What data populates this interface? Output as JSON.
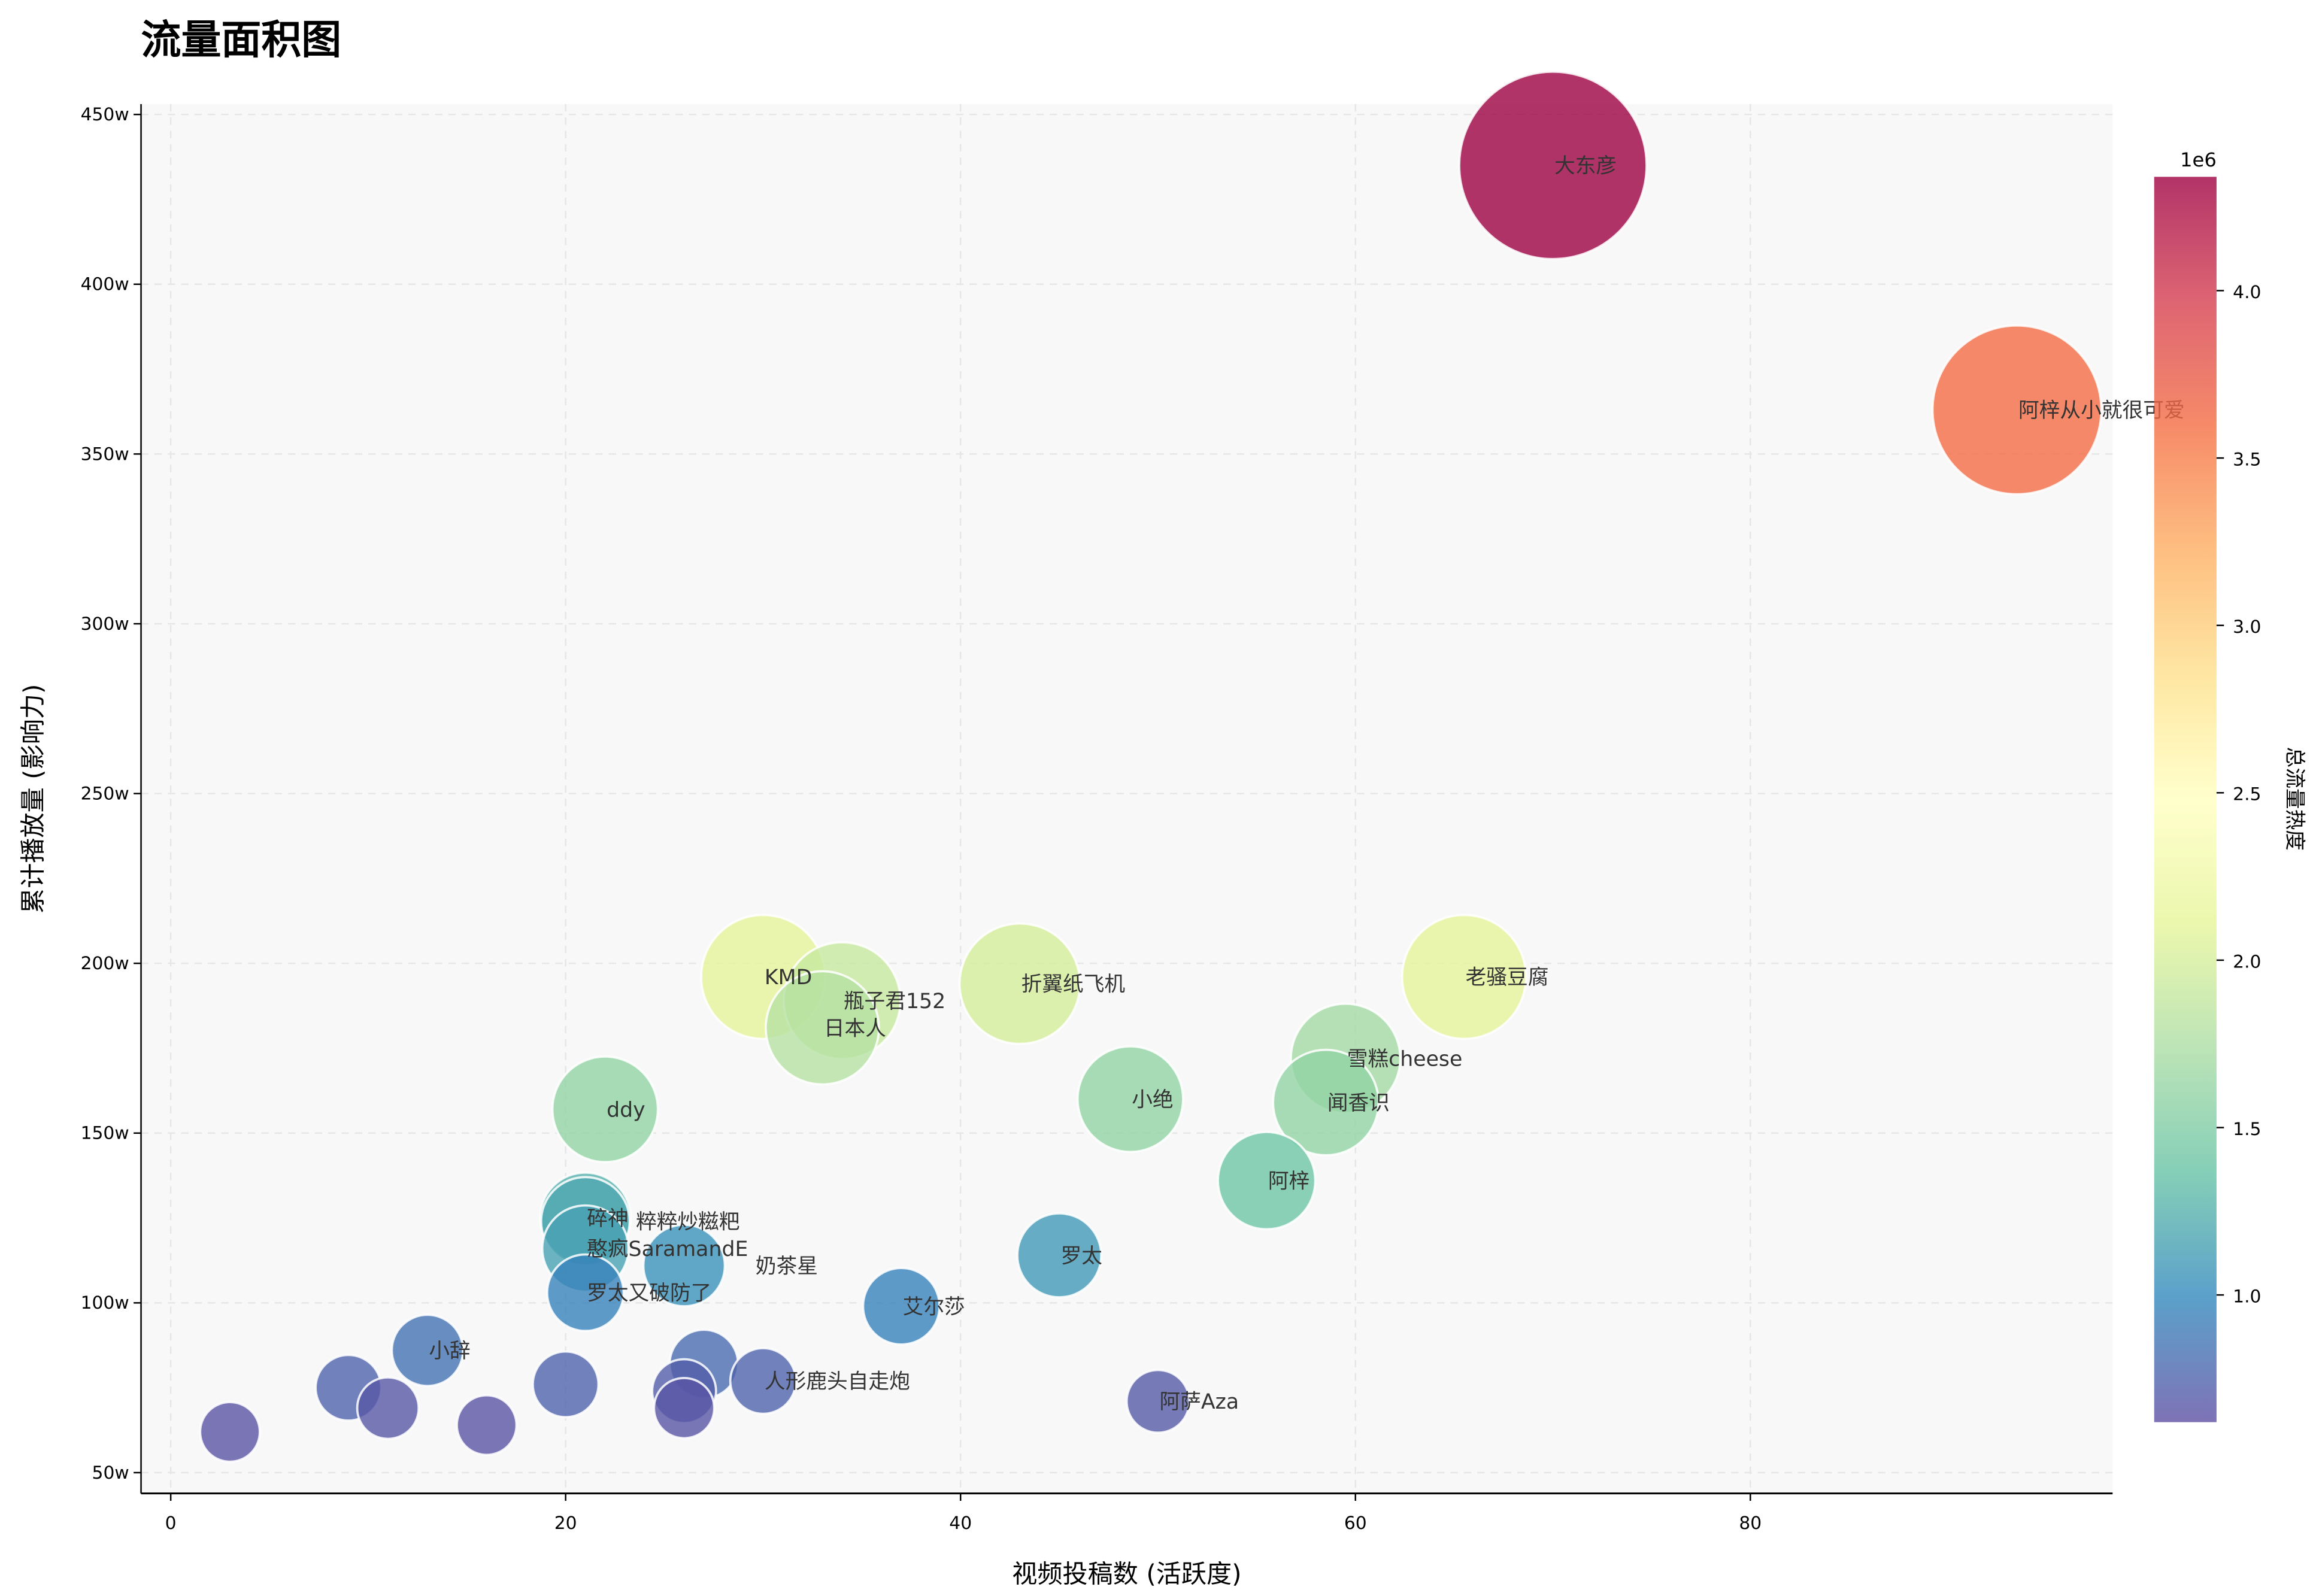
{
  "chart_data": {
    "type": "scatter",
    "title": "流量面积图",
    "xlabel": "视频投稿数 (活跃度)",
    "ylabel": "累计播放量 (影响力)",
    "colorbar_label": "总流量热度",
    "colorbar_exponent": "1e6",
    "colorbar_range": [
      0.62,
      4.34
    ],
    "colorbar_ticks": [
      "1.0",
      "1.5",
      "2.0",
      "2.5",
      "3.0",
      "3.5",
      "4.0"
    ],
    "colormap": "Spectral_r",
    "xlim": [
      -1.5,
      97.5
    ],
    "ylim": [
      44,
      455
    ],
    "x_ticks": [
      "0",
      "20",
      "40",
      "60",
      "80"
    ],
    "x_tick_values": [
      0,
      20,
      40,
      60,
      80
    ],
    "y_ticks": [
      "50w",
      "100w",
      "150w",
      "200w",
      "250w",
      "300w",
      "350w",
      "400w",
      "450w"
    ],
    "y_tick_values": [
      50,
      100,
      150,
      200,
      250,
      300,
      350,
      400,
      450
    ],
    "grid": true,
    "points": [
      {
        "label": "大东彦",
        "x": 70,
        "y": 435,
        "value": 4.34
      },
      {
        "label": "阿梓从小就很可爱",
        "x": 93.5,
        "y": 363,
        "value": 3.6
      },
      {
        "label": "老骚豆腐",
        "x": 65.5,
        "y": 196,
        "value": 2.1
      },
      {
        "label": "KMD",
        "x": 30,
        "y": 196,
        "value": 2.1
      },
      {
        "label": "折翼纸飞机",
        "x": 43,
        "y": 194,
        "value": 2.0
      },
      {
        "label": "瓶子君152",
        "x": 34,
        "y": 189,
        "value": 1.9
      },
      {
        "label": "日本人",
        "x": 33,
        "y": 181,
        "value": 1.8
      },
      {
        "label": "雪糕cheese",
        "x": 59.5,
        "y": 172,
        "value": 1.7
      },
      {
        "label": "闻香识",
        "x": 58.5,
        "y": 159,
        "value": 1.6
      },
      {
        "label": "小绝",
        "x": 48.6,
        "y": 160,
        "value": 1.6
      },
      {
        "label": "ddy",
        "x": 22,
        "y": 157,
        "value": 1.6
      },
      {
        "label": "阿梓",
        "x": 55.5,
        "y": 136,
        "value": 1.4
      },
      {
        "label": "碎神",
        "x": 21,
        "y": 125,
        "value": 1.25
      },
      {
        "label": "粹粹炒糍粑",
        "x": 21,
        "y": 124,
        "value": 1.2
      },
      {
        "label": "憨疯SaramandE",
        "x": 21,
        "y": 116,
        "value": 1.15
      },
      {
        "label": "罗太",
        "x": 45,
        "y": 114,
        "value": 1.1
      },
      {
        "label": "奶茶星",
        "x": 26,
        "y": 111,
        "value": 1.05
      },
      {
        "label": "罗太又破防了",
        "x": 21,
        "y": 103,
        "value": 0.95
      },
      {
        "label": "艾尔莎",
        "x": 37,
        "y": 99,
        "value": 0.95
      },
      {
        "label": "小辞",
        "x": 13,
        "y": 86,
        "value": 0.85
      },
      {
        "label": "",
        "x": 27,
        "y": 82,
        "value": 0.8
      },
      {
        "label": "人形鹿头自走炮",
        "x": 30,
        "y": 77,
        "value": 0.75
      },
      {
        "label": "",
        "x": 9,
        "y": 75,
        "value": 0.75
      },
      {
        "label": "",
        "x": 20,
        "y": 76,
        "value": 0.75
      },
      {
        "label": "",
        "x": 26,
        "y": 74,
        "value": 0.72
      },
      {
        "label": "阿萨Aza",
        "x": 50,
        "y": 71,
        "value": 0.7
      },
      {
        "label": "",
        "x": 11,
        "y": 69,
        "value": 0.68
      },
      {
        "label": "",
        "x": 26,
        "y": 69,
        "value": 0.66
      },
      {
        "label": "",
        "x": 16,
        "y": 64,
        "value": 0.65
      },
      {
        "label": "",
        "x": 3,
        "y": 62,
        "value": 0.65
      }
    ]
  }
}
